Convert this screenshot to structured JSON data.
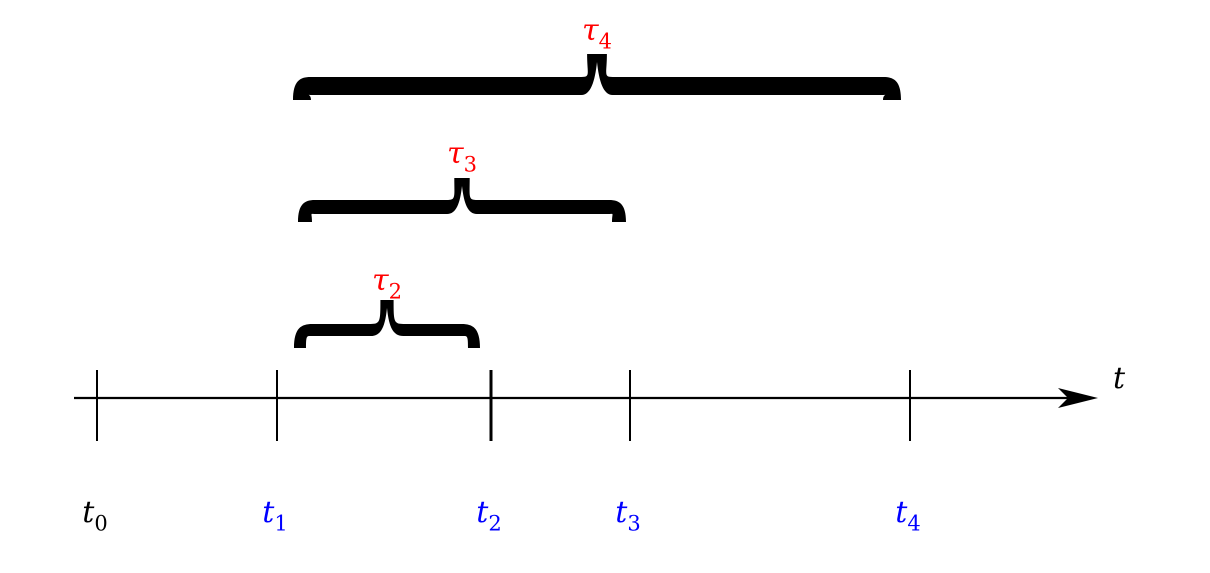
{
  "axis": {
    "label": "t"
  },
  "ticks": [
    {
      "base": "t",
      "sub": "0",
      "color": "#000000"
    },
    {
      "base": "t",
      "sub": "1",
      "color": "#0000ff"
    },
    {
      "base": "t",
      "sub": "2",
      "color": "#0000ff"
    },
    {
      "base": "t",
      "sub": "3",
      "color": "#0000ff"
    },
    {
      "base": "t",
      "sub": "4",
      "color": "#0000ff"
    }
  ],
  "intervals": [
    {
      "base": "τ",
      "sub": "2",
      "from_tick": 1,
      "to_tick": 2,
      "color": "#ff0000"
    },
    {
      "base": "τ",
      "sub": "3",
      "from_tick": 1,
      "to_tick": 3,
      "color": "#ff0000"
    },
    {
      "base": "τ",
      "sub": "4",
      "from_tick": 1,
      "to_tick": 4,
      "color": "#ff0000"
    }
  ],
  "colors": {
    "axis": "#000000",
    "brace": "#000000",
    "interval_label": "#ff0000",
    "highlighted_tick_label": "#0000ff"
  }
}
